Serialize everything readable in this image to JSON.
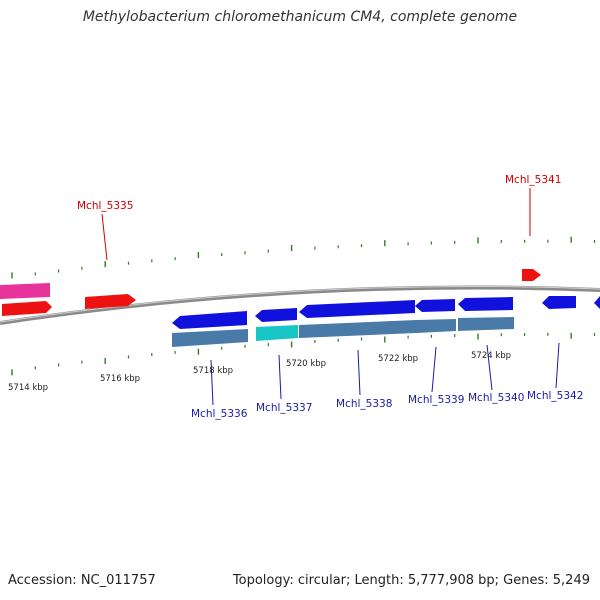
{
  "title": "Methylobacterium chloromethanicum CM4, complete genome",
  "footer": {
    "accession": "Accession: NC_011757",
    "stats": "Topology: circular; Length: 5,777,908 bp; Genes: 5,249"
  },
  "colors": {
    "backbone": "#888888",
    "tick": "#2e7d1e",
    "forward_gene": "#ee1111",
    "forward_pink": "#e8339a",
    "reverse_gene": "#1111dd",
    "reverse_cds": "#4a7aa8",
    "reverse_cyan": "#19c6c6",
    "forward_label": "#cc0000",
    "reverse_label": "#1a1aaa"
  },
  "scale_labels": [
    "5714 kbp",
    "5716 kbp",
    "5718 kbp",
    "5720 kbp",
    "5722 kbp",
    "5724 kbp"
  ],
  "gene_labels": {
    "forward": [
      "Mchl_5335",
      "Mchl_5341"
    ],
    "reverse": [
      "Mchl_5336",
      "Mchl_5337",
      "Mchl_5338",
      "Mchl_5339",
      "Mchl_5340",
      "Mchl_5342"
    ]
  }
}
